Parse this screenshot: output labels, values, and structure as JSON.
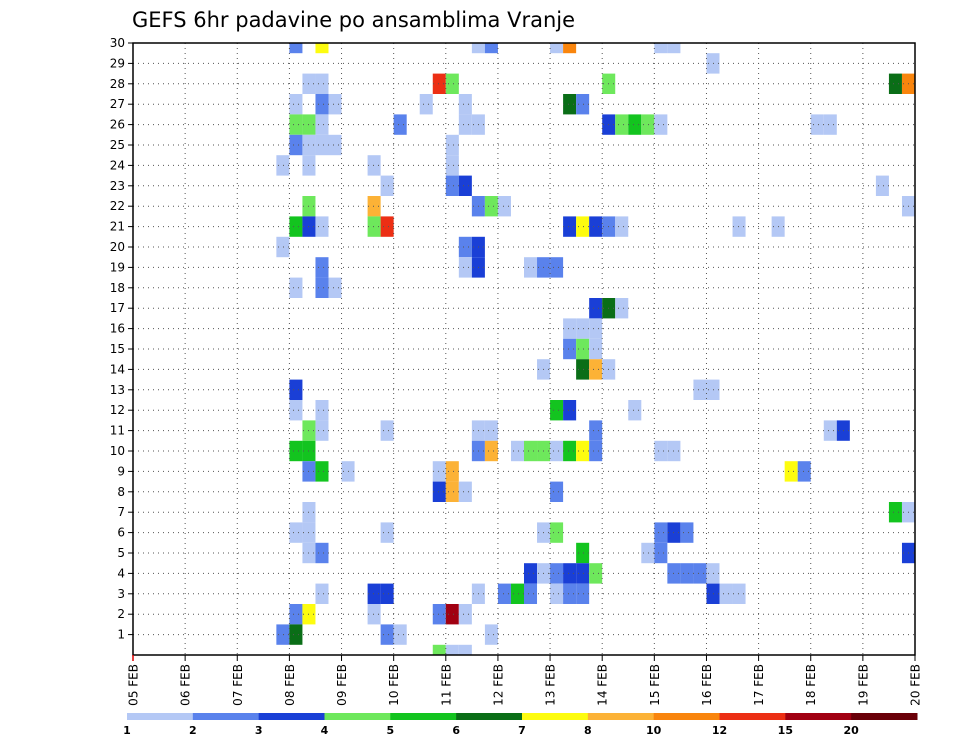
{
  "chart_data": {
    "type": "heatmap",
    "title": "GEFS 6hr padavine po ansamblima Vranje",
    "x_start": "05 FEB",
    "x_end": "20 FEB",
    "x_ticks": [
      "05 FEB",
      "06 FEB",
      "07 FEB",
      "08 FEB",
      "09 FEB",
      "10 FEB",
      "11 FEB",
      "12 FEB",
      "13 FEB",
      "14 FEB",
      "15 FEB",
      "16 FEB",
      "17 FEB",
      "18 FEB",
      "19 FEB",
      "20 FEB"
    ],
    "y_ticks": [
      1,
      2,
      3,
      4,
      5,
      6,
      7,
      8,
      9,
      10,
      11,
      12,
      13,
      14,
      15,
      16,
      17,
      18,
      19,
      20,
      21,
      22,
      23,
      24,
      25,
      26,
      27,
      28,
      29,
      30
    ],
    "grid": true,
    "legend": {
      "position": "bottom",
      "labels": [
        "1",
        "2",
        "3",
        "4",
        "5",
        "6",
        "7",
        "8",
        "10",
        "12",
        "15",
        "20"
      ],
      "colors": [
        "#b4c8f5",
        "#5a82ec",
        "#1a3fd6",
        "#6ee85c",
        "#13c41f",
        "#0a6e17",
        "#fdfc0f",
        "#fcb236",
        "#f9850d",
        "#ec2f14",
        "#a10012",
        "#6a0009"
      ]
    },
    "cells": [
      {
        "day": 8.0,
        "m": 30,
        "c": 1
      },
      {
        "day": 8.5,
        "m": 30,
        "c": 6
      },
      {
        "day": 11.5,
        "m": 30,
        "c": 0
      },
      {
        "day": 11.75,
        "m": 30,
        "c": 1
      },
      {
        "day": 13.0,
        "m": 30,
        "c": 0
      },
      {
        "day": 13.25,
        "m": 30,
        "c": 8
      },
      {
        "day": 15.0,
        "m": 30,
        "c": 0
      },
      {
        "day": 15.25,
        "m": 30,
        "c": 0
      },
      {
        "day": 16.0,
        "m": 29,
        "c": 0
      },
      {
        "day": 8.25,
        "m": 28,
        "c": 0
      },
      {
        "day": 8.5,
        "m": 28,
        "c": 0
      },
      {
        "day": 10.75,
        "m": 28,
        "c": 9
      },
      {
        "day": 11.0,
        "m": 28,
        "c": 3
      },
      {
        "day": 14.0,
        "m": 28,
        "c": 3
      },
      {
        "day": 19.5,
        "m": 28,
        "c": 5
      },
      {
        "day": 19.75,
        "m": 28,
        "c": 8
      },
      {
        "day": 8.0,
        "m": 27,
        "c": 0
      },
      {
        "day": 8.5,
        "m": 27,
        "c": 1
      },
      {
        "day": 8.75,
        "m": 27,
        "c": 0
      },
      {
        "day": 10.5,
        "m": 27,
        "c": 0
      },
      {
        "day": 11.25,
        "m": 27,
        "c": 0
      },
      {
        "day": 13.25,
        "m": 27,
        "c": 5
      },
      {
        "day": 13.5,
        "m": 27,
        "c": 1
      },
      {
        "day": 8.0,
        "m": 26,
        "c": 3
      },
      {
        "day": 8.25,
        "m": 26,
        "c": 3
      },
      {
        "day": 8.5,
        "m": 26,
        "c": 0
      },
      {
        "day": 10.0,
        "m": 26,
        "c": 1
      },
      {
        "day": 11.25,
        "m": 26,
        "c": 0
      },
      {
        "day": 11.5,
        "m": 26,
        "c": 0
      },
      {
        "day": 14.0,
        "m": 26,
        "c": 2
      },
      {
        "day": 14.25,
        "m": 26,
        "c": 3
      },
      {
        "day": 14.5,
        "m": 26,
        "c": 4
      },
      {
        "day": 14.75,
        "m": 26,
        "c": 3
      },
      {
        "day": 15.0,
        "m": 26,
        "c": 0
      },
      {
        "day": 18.0,
        "m": 26,
        "c": 0
      },
      {
        "day": 18.25,
        "m": 26,
        "c": 0
      },
      {
        "day": 8.0,
        "m": 25,
        "c": 1
      },
      {
        "day": 8.25,
        "m": 25,
        "c": 0
      },
      {
        "day": 8.5,
        "m": 25,
        "c": 0
      },
      {
        "day": 8.75,
        "m": 25,
        "c": 0
      },
      {
        "day": 11.0,
        "m": 25,
        "c": 0
      },
      {
        "day": 7.75,
        "m": 24,
        "c": 0
      },
      {
        "day": 8.25,
        "m": 24,
        "c": 0
      },
      {
        "day": 9.5,
        "m": 24,
        "c": 0
      },
      {
        "day": 11.0,
        "m": 24,
        "c": 0
      },
      {
        "day": 9.75,
        "m": 23,
        "c": 0
      },
      {
        "day": 11.0,
        "m": 23,
        "c": 1
      },
      {
        "day": 11.25,
        "m": 23,
        "c": 2
      },
      {
        "day": 19.25,
        "m": 23,
        "c": 0
      },
      {
        "day": 8.25,
        "m": 22,
        "c": 3
      },
      {
        "day": 9.5,
        "m": 22,
        "c": 7
      },
      {
        "day": 11.5,
        "m": 22,
        "c": 1
      },
      {
        "day": 11.75,
        "m": 22,
        "c": 3
      },
      {
        "day": 12.0,
        "m": 22,
        "c": 0
      },
      {
        "day": 19.75,
        "m": 22,
        "c": 0
      },
      {
        "day": 8.0,
        "m": 21,
        "c": 4
      },
      {
        "day": 8.25,
        "m": 21,
        "c": 2
      },
      {
        "day": 8.5,
        "m": 21,
        "c": 0
      },
      {
        "day": 9.5,
        "m": 21,
        "c": 3
      },
      {
        "day": 9.75,
        "m": 21,
        "c": 9
      },
      {
        "day": 13.25,
        "m": 21,
        "c": 2
      },
      {
        "day": 13.5,
        "m": 21,
        "c": 6
      },
      {
        "day": 13.75,
        "m": 21,
        "c": 2
      },
      {
        "day": 14.0,
        "m": 21,
        "c": 1
      },
      {
        "day": 14.25,
        "m": 21,
        "c": 0
      },
      {
        "day": 16.5,
        "m": 21,
        "c": 0
      },
      {
        "day": 17.25,
        "m": 21,
        "c": 0
      },
      {
        "day": 7.75,
        "m": 20,
        "c": 0
      },
      {
        "day": 11.25,
        "m": 20,
        "c": 1
      },
      {
        "day": 11.5,
        "m": 20,
        "c": 2
      },
      {
        "day": 8.5,
        "m": 19,
        "c": 1
      },
      {
        "day": 11.25,
        "m": 19,
        "c": 0
      },
      {
        "day": 11.5,
        "m": 19,
        "c": 2
      },
      {
        "day": 12.5,
        "m": 19,
        "c": 0
      },
      {
        "day": 12.75,
        "m": 19,
        "c": 1
      },
      {
        "day": 13.0,
        "m": 19,
        "c": 1
      },
      {
        "day": 8.0,
        "m": 18,
        "c": 0
      },
      {
        "day": 8.5,
        "m": 18,
        "c": 1
      },
      {
        "day": 8.75,
        "m": 18,
        "c": 0
      },
      {
        "day": 13.75,
        "m": 17,
        "c": 2
      },
      {
        "day": 14.0,
        "m": 17,
        "c": 5
      },
      {
        "day": 14.25,
        "m": 17,
        "c": 0
      },
      {
        "day": 13.25,
        "m": 16,
        "c": 0
      },
      {
        "day": 13.5,
        "m": 16,
        "c": 0
      },
      {
        "day": 13.75,
        "m": 16,
        "c": 0
      },
      {
        "day": 13.25,
        "m": 15,
        "c": 1
      },
      {
        "day": 13.5,
        "m": 15,
        "c": 3
      },
      {
        "day": 13.75,
        "m": 15,
        "c": 0
      },
      {
        "day": 12.75,
        "m": 14,
        "c": 0
      },
      {
        "day": 13.5,
        "m": 14,
        "c": 5
      },
      {
        "day": 13.75,
        "m": 14,
        "c": 7
      },
      {
        "day": 14.0,
        "m": 14,
        "c": 0
      },
      {
        "day": 8.0,
        "m": 13,
        "c": 2
      },
      {
        "day": 15.75,
        "m": 13,
        "c": 0
      },
      {
        "day": 16.0,
        "m": 13,
        "c": 0
      },
      {
        "day": 8.0,
        "m": 12,
        "c": 0
      },
      {
        "day": 8.5,
        "m": 12,
        "c": 0
      },
      {
        "day": 13.0,
        "m": 12,
        "c": 4
      },
      {
        "day": 13.25,
        "m": 12,
        "c": 2
      },
      {
        "day": 14.5,
        "m": 12,
        "c": 0
      },
      {
        "day": 8.25,
        "m": 11,
        "c": 3
      },
      {
        "day": 8.5,
        "m": 11,
        "c": 0
      },
      {
        "day": 9.75,
        "m": 11,
        "c": 0
      },
      {
        "day": 11.5,
        "m": 11,
        "c": 0
      },
      {
        "day": 11.75,
        "m": 11,
        "c": 0
      },
      {
        "day": 13.75,
        "m": 11,
        "c": 1
      },
      {
        "day": 18.25,
        "m": 11,
        "c": 0
      },
      {
        "day": 18.5,
        "m": 11,
        "c": 2
      },
      {
        "day": 8.0,
        "m": 10,
        "c": 4
      },
      {
        "day": 8.25,
        "m": 10,
        "c": 4
      },
      {
        "day": 11.5,
        "m": 10,
        "c": 1
      },
      {
        "day": 11.75,
        "m": 10,
        "c": 7
      },
      {
        "day": 12.25,
        "m": 10,
        "c": 0
      },
      {
        "day": 12.5,
        "m": 10,
        "c": 3
      },
      {
        "day": 12.75,
        "m": 10,
        "c": 3
      },
      {
        "day": 13.0,
        "m": 10,
        "c": 0
      },
      {
        "day": 13.25,
        "m": 10,
        "c": 4
      },
      {
        "day": 13.5,
        "m": 10,
        "c": 6
      },
      {
        "day": 13.75,
        "m": 10,
        "c": 1
      },
      {
        "day": 15.0,
        "m": 10,
        "c": 0
      },
      {
        "day": 15.25,
        "m": 10,
        "c": 0
      },
      {
        "day": 8.25,
        "m": 9,
        "c": 1
      },
      {
        "day": 8.5,
        "m": 9,
        "c": 4
      },
      {
        "day": 9.0,
        "m": 9,
        "c": 0
      },
      {
        "day": 10.75,
        "m": 9,
        "c": 0
      },
      {
        "day": 11.0,
        "m": 9,
        "c": 7
      },
      {
        "day": 17.5,
        "m": 9,
        "c": 6
      },
      {
        "day": 17.75,
        "m": 9,
        "c": 1
      },
      {
        "day": 10.75,
        "m": 8,
        "c": 2
      },
      {
        "day": 11.0,
        "m": 8,
        "c": 7
      },
      {
        "day": 11.25,
        "m": 8,
        "c": 0
      },
      {
        "day": 13.0,
        "m": 8,
        "c": 1
      },
      {
        "day": 8.25,
        "m": 7,
        "c": 0
      },
      {
        "day": 19.5,
        "m": 7,
        "c": 4
      },
      {
        "day": 19.75,
        "m": 7,
        "c": 0
      },
      {
        "day": 8.0,
        "m": 6,
        "c": 0
      },
      {
        "day": 8.25,
        "m": 6,
        "c": 0
      },
      {
        "day": 9.75,
        "m": 6,
        "c": 0
      },
      {
        "day": 12.75,
        "m": 6,
        "c": 0
      },
      {
        "day": 13.0,
        "m": 6,
        "c": 3
      },
      {
        "day": 15.0,
        "m": 6,
        "c": 1
      },
      {
        "day": 15.25,
        "m": 6,
        "c": 2
      },
      {
        "day": 15.5,
        "m": 6,
        "c": 1
      },
      {
        "day": 8.25,
        "m": 5,
        "c": 0
      },
      {
        "day": 8.5,
        "m": 5,
        "c": 1
      },
      {
        "day": 13.5,
        "m": 5,
        "c": 4
      },
      {
        "day": 14.75,
        "m": 5,
        "c": 0
      },
      {
        "day": 15.0,
        "m": 5,
        "c": 1
      },
      {
        "day": 19.75,
        "m": 5,
        "c": 2
      },
      {
        "day": 12.5,
        "m": 4,
        "c": 2
      },
      {
        "day": 12.75,
        "m": 4,
        "c": 0
      },
      {
        "day": 13.0,
        "m": 4,
        "c": 1
      },
      {
        "day": 13.25,
        "m": 4,
        "c": 2
      },
      {
        "day": 13.5,
        "m": 4,
        "c": 2
      },
      {
        "day": 13.75,
        "m": 4,
        "c": 3
      },
      {
        "day": 15.25,
        "m": 4,
        "c": 1
      },
      {
        "day": 15.5,
        "m": 4,
        "c": 1
      },
      {
        "day": 15.75,
        "m": 4,
        "c": 1
      },
      {
        "day": 16.0,
        "m": 4,
        "c": 0
      },
      {
        "day": 8.5,
        "m": 3,
        "c": 0
      },
      {
        "day": 9.5,
        "m": 3,
        "c": 2
      },
      {
        "day": 9.75,
        "m": 3,
        "c": 2
      },
      {
        "day": 11.5,
        "m": 3,
        "c": 0
      },
      {
        "day": 12.0,
        "m": 3,
        "c": 1
      },
      {
        "day": 12.25,
        "m": 3,
        "c": 4
      },
      {
        "day": 12.5,
        "m": 3,
        "c": 1
      },
      {
        "day": 13.0,
        "m": 3,
        "c": 0
      },
      {
        "day": 13.25,
        "m": 3,
        "c": 1
      },
      {
        "day": 13.5,
        "m": 3,
        "c": 1
      },
      {
        "day": 16.0,
        "m": 3,
        "c": 2
      },
      {
        "day": 16.25,
        "m": 3,
        "c": 0
      },
      {
        "day": 16.5,
        "m": 3,
        "c": 0
      },
      {
        "day": 8.0,
        "m": 2,
        "c": 1
      },
      {
        "day": 8.25,
        "m": 2,
        "c": 6
      },
      {
        "day": 9.5,
        "m": 2,
        "c": 0
      },
      {
        "day": 10.75,
        "m": 2,
        "c": 1
      },
      {
        "day": 11.0,
        "m": 2,
        "c": 10
      },
      {
        "day": 11.25,
        "m": 2,
        "c": 0
      },
      {
        "day": 7.75,
        "m": 1,
        "c": 1
      },
      {
        "day": 8.0,
        "m": 1,
        "c": 5
      },
      {
        "day": 9.75,
        "m": 1,
        "c": 1
      },
      {
        "day": 10.0,
        "m": 1,
        "c": 0
      },
      {
        "day": 11.75,
        "m": 1,
        "c": 0
      },
      {
        "day": 10.75,
        "m": 0,
        "c": 3
      },
      {
        "day": 11.0,
        "m": 0,
        "c": 0
      },
      {
        "day": 11.25,
        "m": 0,
        "c": 0
      }
    ]
  }
}
